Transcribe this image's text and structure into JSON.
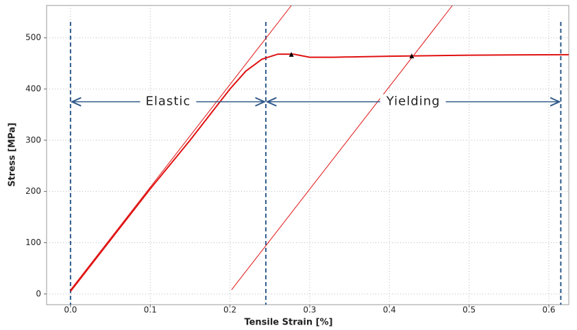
{
  "chart_data": {
    "type": "line",
    "xlabel": "Tensile Strain [%]",
    "ylabel": "Stress [MPa]",
    "xlim": [
      -0.03,
      0.625
    ],
    "ylim": [
      -21,
      563
    ],
    "xticks": [
      {
        "value": 0,
        "label": "0.0"
      },
      0.1,
      0.2,
      0.3,
      0.4,
      0.5,
      0.6
    ],
    "yticks": [
      0,
      100,
      200,
      300,
      400,
      500
    ],
    "grid": true,
    "series": [
      {
        "color": "#e01010",
        "width": 2,
        "x": [
          0,
          0.035,
          0.07,
          0.1,
          0.15,
          0.18,
          0.2,
          0.22,
          0.24,
          0.26,
          0.28,
          0.3,
          0.33,
          0.4,
          0.5,
          0.625
        ],
        "values": [
          5,
          75,
          145,
          205,
          300,
          360,
          400,
          435,
          458,
          468,
          468,
          462,
          462,
          464,
          466,
          467
        ]
      },
      {
        "color": "#e01010",
        "width": 1,
        "x": [
          0,
          0.277
        ],
        "values": [
          8,
          563
        ]
      },
      {
        "color": "#e01010",
        "width": 1,
        "x": [
          0.202,
          0.479
        ],
        "values": [
          8,
          563
        ]
      }
    ],
    "markers": {
      "color": "#000000",
      "x": [
        0.277,
        0.428
      ],
      "values": [
        467,
        464
      ]
    },
    "vlines": {
      "color": "#2f5a8a",
      "x": [
        0,
        0.245,
        0.615
      ]
    },
    "annotations": [
      {
        "text": "Elastic",
        "x": [
          0,
          0.245
        ],
        "y": 375
      },
      {
        "text": "Yielding",
        "x": [
          0.245,
          0.615
        ],
        "y": 375
      }
    ]
  }
}
